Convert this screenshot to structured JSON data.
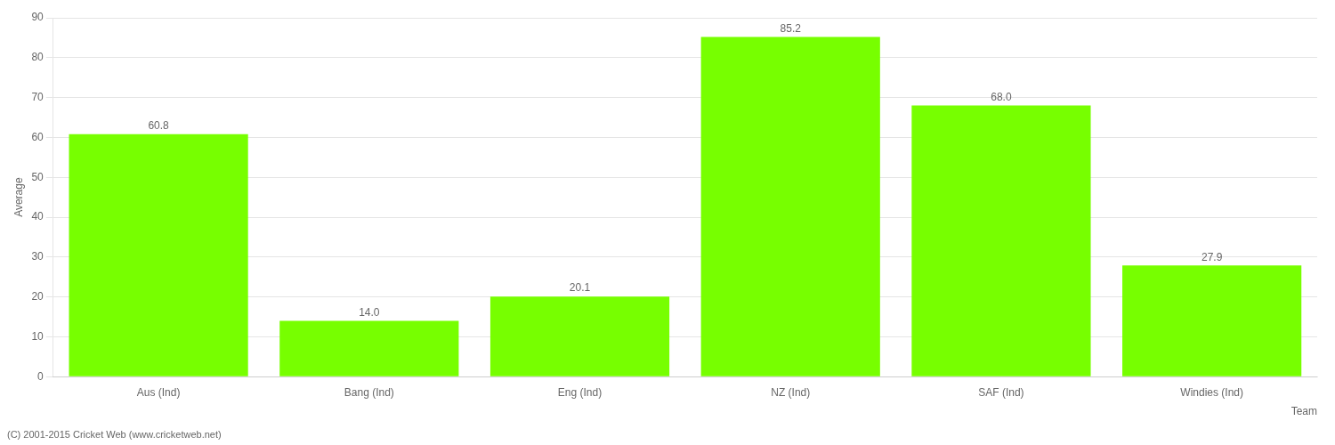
{
  "chart_data": {
    "type": "bar",
    "categories": [
      "Aus (Ind)",
      "Bang (Ind)",
      "Eng (Ind)",
      "NZ (Ind)",
      "SAF (Ind)",
      "Windies (Ind)"
    ],
    "values": [
      60.8,
      14.0,
      20.1,
      85.2,
      68.0,
      27.9
    ],
    "value_labels": [
      "60.8",
      "14.0",
      "20.1",
      "85.2",
      "68.0",
      "27.9"
    ],
    "data_labels": true,
    "color": "#77ff00",
    "xlabel": "Team",
    "ylabel": "Average",
    "ylim": [
      0,
      90
    ],
    "yticks": [
      0,
      10,
      20,
      30,
      40,
      50,
      60,
      70,
      80,
      90
    ],
    "grid": true,
    "annotations": [
      "(C) 2001-2015 Cricket Web (www.cricketweb.net)"
    ]
  }
}
